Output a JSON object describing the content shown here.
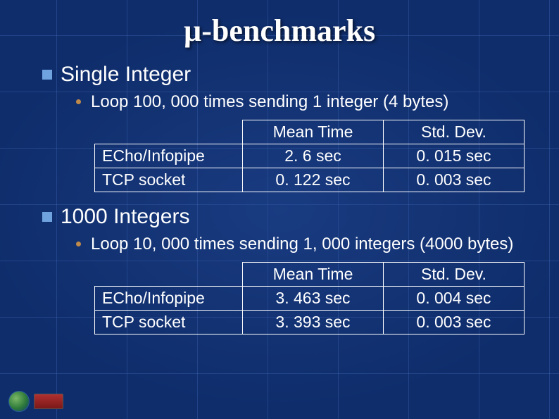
{
  "title": "µ-benchmarks",
  "section1": {
    "heading": "Single Integer",
    "sub": "Loop 100, 000 times sending 1 integer (4 bytes)",
    "table": {
      "col1_header": "Mean Time",
      "col2_header": "Std. Dev.",
      "rows": [
        {
          "label": "ECho/Infopipe",
          "mean": "2. 6 sec",
          "std": "0. 015 sec"
        },
        {
          "label": "TCP socket",
          "mean": "0. 122 sec",
          "std": "0. 003 sec"
        }
      ]
    }
  },
  "section2": {
    "heading": "1000 Integers",
    "sub": "Loop 10, 000 times sending 1, 000 integers (4000 bytes)",
    "table": {
      "col1_header": "Mean Time",
      "col2_header": "Std. Dev.",
      "rows": [
        {
          "label": "ECho/Infopipe",
          "mean": "3. 463 sec",
          "std": "0. 004 sec"
        },
        {
          "label": "TCP socket",
          "mean": "3. 393 sec",
          "std": "0. 003 sec"
        }
      ]
    }
  },
  "style": {
    "background_color": "#0f2d6b",
    "grid_color": "rgba(80,120,200,0.3)",
    "title_fontsize": 44,
    "heading_fontsize": 30,
    "sub_fontsize": 24,
    "table_fontsize": 23,
    "square_bullet_color": "#6fa3e0",
    "dot_bullet_color": "#c08a4a",
    "text_color": "#ffffff",
    "table_border_color": "#ffffff"
  }
}
